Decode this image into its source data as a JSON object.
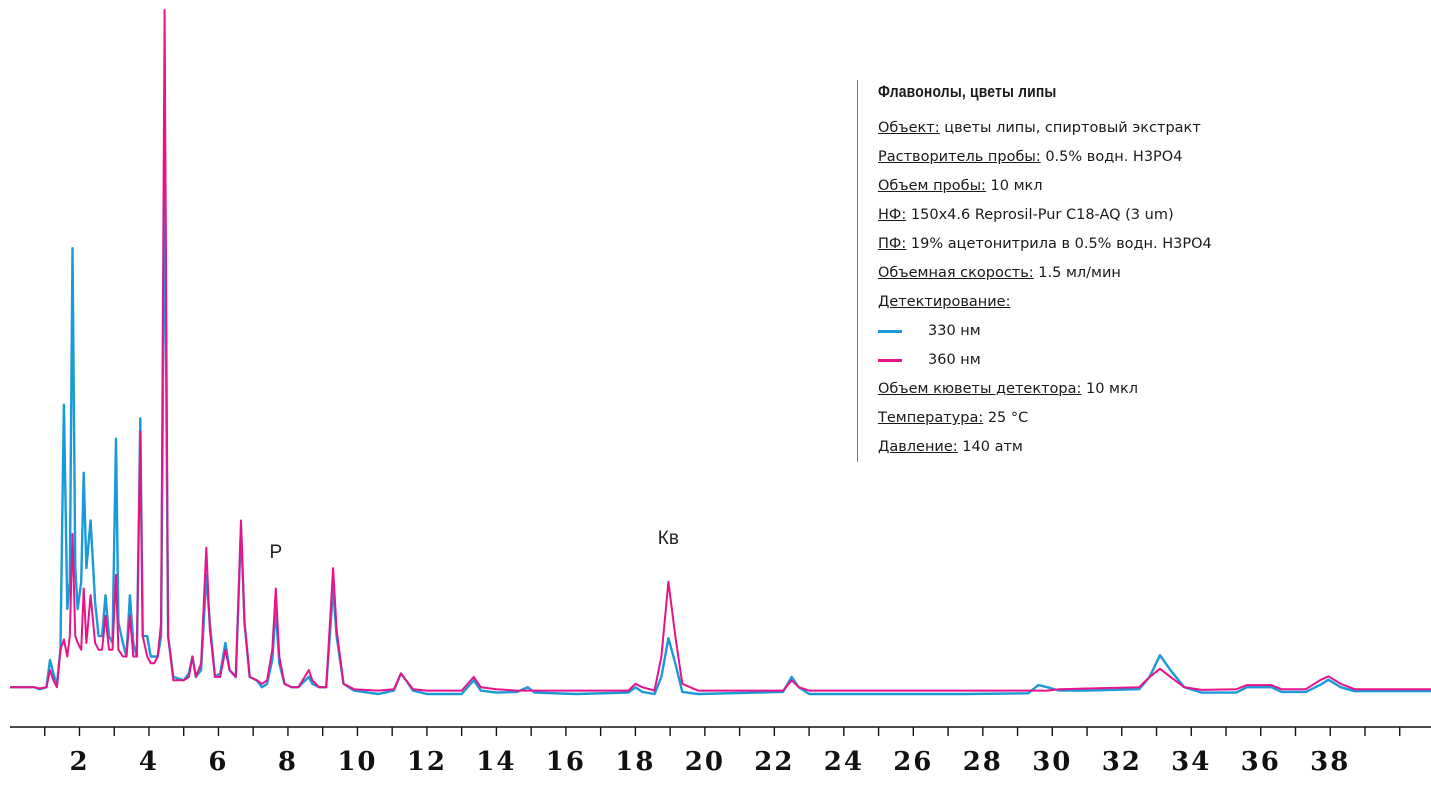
{
  "chart_data": {
    "type": "line",
    "title": "Флавонолы, цветы липы",
    "xlabel": "",
    "ylabel": "",
    "xlim": [
      0,
      40.9
    ],
    "ylim": [
      -0.8,
      100
    ],
    "x_ticks": [
      2,
      4,
      6,
      8,
      10,
      12,
      14,
      16,
      18,
      20,
      22,
      24,
      26,
      28,
      30,
      32,
      34,
      36,
      38
    ],
    "x_tick_labels": [
      "2",
      "4",
      "6",
      "8",
      "10",
      "12",
      "14",
      "16",
      "18",
      "20",
      "22",
      "24",
      "26",
      "28",
      "30",
      "32",
      "34",
      "36",
      "38"
    ],
    "minor_tick_step": 1,
    "grid": false,
    "annotations": [
      {
        "text": "Р",
        "x": 7.65,
        "y": 19.5
      },
      {
        "text": "Кв",
        "x": 18.95,
        "y": 21.5
      }
    ],
    "series": [
      {
        "name": "330 нм",
        "color": "#1a9ad6",
        "points": [
          [
            0,
            0.5
          ],
          [
            0.7,
            0.5
          ],
          [
            0.85,
            0.2
          ],
          [
            1.05,
            0.5
          ],
          [
            1.15,
            4.5
          ],
          [
            1.25,
            2.5
          ],
          [
            1.35,
            0.8
          ],
          [
            1.45,
            6
          ],
          [
            1.55,
            42
          ],
          [
            1.65,
            12
          ],
          [
            1.72,
            16
          ],
          [
            1.8,
            65
          ],
          [
            1.88,
            18
          ],
          [
            1.95,
            12
          ],
          [
            2.05,
            16
          ],
          [
            2.12,
            32
          ],
          [
            2.2,
            18
          ],
          [
            2.32,
            25
          ],
          [
            2.45,
            13
          ],
          [
            2.55,
            8
          ],
          [
            2.65,
            8
          ],
          [
            2.75,
            14
          ],
          [
            2.85,
            8
          ],
          [
            2.95,
            7
          ],
          [
            3.05,
            37
          ],
          [
            3.12,
            10
          ],
          [
            3.25,
            7
          ],
          [
            3.35,
            5
          ],
          [
            3.45,
            14
          ],
          [
            3.55,
            7
          ],
          [
            3.65,
            5
          ],
          [
            3.75,
            40
          ],
          [
            3.82,
            8
          ],
          [
            3.95,
            8
          ],
          [
            4.05,
            5
          ],
          [
            4.15,
            5
          ],
          [
            4.25,
            5
          ],
          [
            4.35,
            8
          ],
          [
            4.45,
            78
          ],
          [
            4.55,
            8
          ],
          [
            4.7,
            2
          ],
          [
            5.0,
            1.5
          ],
          [
            5.15,
            2.5
          ],
          [
            5.25,
            5
          ],
          [
            5.35,
            2
          ],
          [
            5.5,
            3
          ],
          [
            5.65,
            17
          ],
          [
            5.75,
            10
          ],
          [
            5.9,
            2
          ],
          [
            6.05,
            2.5
          ],
          [
            6.2,
            7
          ],
          [
            6.32,
            3
          ],
          [
            6.5,
            2
          ],
          [
            6.65,
            24
          ],
          [
            6.75,
            10
          ],
          [
            6.9,
            2
          ],
          [
            7.1,
            1.5
          ],
          [
            7.25,
            0.5
          ],
          [
            7.4,
            1
          ],
          [
            7.55,
            4.5
          ],
          [
            7.65,
            12
          ],
          [
            7.75,
            4
          ],
          [
            7.9,
            1
          ],
          [
            8.1,
            0.5
          ],
          [
            8.3,
            0.5
          ],
          [
            8.6,
            2
          ],
          [
            8.7,
            1
          ],
          [
            8.9,
            0.5
          ],
          [
            9.1,
            0.5
          ],
          [
            9.3,
            15
          ],
          [
            9.4,
            8
          ],
          [
            9.6,
            1
          ],
          [
            9.9,
            0
          ],
          [
            10.6,
            -0.5
          ],
          [
            11.05,
            0
          ],
          [
            11.25,
            2.5
          ],
          [
            11.4,
            1.5
          ],
          [
            11.6,
            0
          ],
          [
            12.0,
            -0.5
          ],
          [
            13.0,
            -0.5
          ],
          [
            13.35,
            1.5
          ],
          [
            13.55,
            0
          ],
          [
            14.0,
            -0.3
          ],
          [
            14.6,
            -0.2
          ],
          [
            14.9,
            0.5
          ],
          [
            15.1,
            -0.3
          ],
          [
            16.3,
            -0.5
          ],
          [
            17.8,
            -0.3
          ],
          [
            18.0,
            0.5
          ],
          [
            18.2,
            -0.2
          ],
          [
            18.55,
            -0.5
          ],
          [
            18.75,
            2
          ],
          [
            18.95,
            7.7
          ],
          [
            19.15,
            4
          ],
          [
            19.35,
            -0.2
          ],
          [
            19.8,
            -0.5
          ],
          [
            22.25,
            -0.2
          ],
          [
            22.5,
            2
          ],
          [
            22.7,
            0.5
          ],
          [
            23.0,
            -0.5
          ],
          [
            27.5,
            -0.5
          ],
          [
            29.3,
            -0.4
          ],
          [
            29.6,
            0.8
          ],
          [
            29.85,
            0.5
          ],
          [
            30.2,
            0
          ],
          [
            31.0,
            0
          ],
          [
            32.5,
            0.2
          ],
          [
            32.8,
            2
          ],
          [
            33.1,
            5.2
          ],
          [
            33.4,
            3
          ],
          [
            33.8,
            0.5
          ],
          [
            34.3,
            -0.3
          ],
          [
            35.3,
            -0.3
          ],
          [
            35.6,
            0.5
          ],
          [
            36.3,
            0.5
          ],
          [
            36.6,
            -0.2
          ],
          [
            37.3,
            -0.2
          ],
          [
            37.7,
            0.8
          ],
          [
            37.95,
            1.6
          ],
          [
            38.3,
            0.5
          ],
          [
            38.7,
            -0.1
          ],
          [
            40.9,
            -0.1
          ]
        ]
      },
      {
        "name": "360 нм",
        "color": "#e8138a",
        "points": [
          [
            0,
            0.5
          ],
          [
            0.7,
            0.5
          ],
          [
            0.85,
            0.3
          ],
          [
            1.05,
            0.5
          ],
          [
            1.15,
            3
          ],
          [
            1.25,
            1.5
          ],
          [
            1.35,
            0.5
          ],
          [
            1.45,
            6
          ],
          [
            1.55,
            7.5
          ],
          [
            1.65,
            5
          ],
          [
            1.72,
            8
          ],
          [
            1.8,
            23
          ],
          [
            1.88,
            8
          ],
          [
            1.95,
            7
          ],
          [
            2.05,
            6
          ],
          [
            2.12,
            15
          ],
          [
            2.2,
            7
          ],
          [
            2.32,
            14
          ],
          [
            2.45,
            7
          ],
          [
            2.55,
            6
          ],
          [
            2.65,
            6
          ],
          [
            2.75,
            11
          ],
          [
            2.85,
            6
          ],
          [
            2.95,
            6
          ],
          [
            3.05,
            17
          ],
          [
            3.12,
            6
          ],
          [
            3.25,
            5
          ],
          [
            3.35,
            5
          ],
          [
            3.45,
            11
          ],
          [
            3.55,
            5
          ],
          [
            3.65,
            5
          ],
          [
            3.75,
            38
          ],
          [
            3.82,
            8
          ],
          [
            3.95,
            5
          ],
          [
            4.05,
            4
          ],
          [
            4.15,
            4
          ],
          [
            4.25,
            5
          ],
          [
            4.35,
            10
          ],
          [
            4.45,
            100
          ],
          [
            4.55,
            8
          ],
          [
            4.7,
            1.5
          ],
          [
            5.0,
            1.5
          ],
          [
            5.15,
            2
          ],
          [
            5.25,
            5
          ],
          [
            5.35,
            2
          ],
          [
            5.5,
            4
          ],
          [
            5.65,
            21
          ],
          [
            5.75,
            9
          ],
          [
            5.9,
            2
          ],
          [
            6.05,
            2
          ],
          [
            6.2,
            6
          ],
          [
            6.32,
            3
          ],
          [
            6.5,
            2
          ],
          [
            6.65,
            25
          ],
          [
            6.75,
            10
          ],
          [
            6.9,
            2
          ],
          [
            7.1,
            1.5
          ],
          [
            7.25,
            1
          ],
          [
            7.4,
            1.5
          ],
          [
            7.55,
            6
          ],
          [
            7.65,
            15
          ],
          [
            7.75,
            5
          ],
          [
            7.9,
            1
          ],
          [
            8.1,
            0.5
          ],
          [
            8.3,
            0.5
          ],
          [
            8.6,
            3
          ],
          [
            8.7,
            1.5
          ],
          [
            8.9,
            0.5
          ],
          [
            9.1,
            0.5
          ],
          [
            9.3,
            18
          ],
          [
            9.4,
            9
          ],
          [
            9.6,
            1
          ],
          [
            9.9,
            0.2
          ],
          [
            10.6,
            0
          ],
          [
            11.05,
            0.2
          ],
          [
            11.25,
            2.5
          ],
          [
            11.4,
            1.5
          ],
          [
            11.6,
            0.2
          ],
          [
            12.0,
            0
          ],
          [
            13.0,
            0
          ],
          [
            13.35,
            2
          ],
          [
            13.55,
            0.5
          ],
          [
            14.0,
            0.2
          ],
          [
            14.6,
            0
          ],
          [
            14.9,
            0
          ],
          [
            15.1,
            0
          ],
          [
            16.3,
            0
          ],
          [
            17.8,
            0
          ],
          [
            18.0,
            1
          ],
          [
            18.2,
            0.5
          ],
          [
            18.55,
            0
          ],
          [
            18.75,
            5
          ],
          [
            18.95,
            16
          ],
          [
            19.15,
            8
          ],
          [
            19.35,
            1
          ],
          [
            19.8,
            0
          ],
          [
            22.25,
            0
          ],
          [
            22.5,
            1.5
          ],
          [
            22.7,
            0.5
          ],
          [
            23.0,
            0
          ],
          [
            27.5,
            0
          ],
          [
            29.3,
            0
          ],
          [
            29.6,
            0
          ],
          [
            29.85,
            0
          ],
          [
            30.2,
            0.2
          ],
          [
            31.0,
            0.3
          ],
          [
            32.5,
            0.5
          ],
          [
            32.8,
            2
          ],
          [
            33.1,
            3.2
          ],
          [
            33.4,
            2
          ],
          [
            33.8,
            0.5
          ],
          [
            34.3,
            0.1
          ],
          [
            35.3,
            0.2
          ],
          [
            35.6,
            0.8
          ],
          [
            36.3,
            0.8
          ],
          [
            36.6,
            0.2
          ],
          [
            37.3,
            0.2
          ],
          [
            37.7,
            1.5
          ],
          [
            37.95,
            2.1
          ],
          [
            38.3,
            1
          ],
          [
            38.7,
            0.2
          ],
          [
            40.9,
            0.2
          ]
        ]
      }
    ]
  },
  "legend": {
    "title": "Флавонолы, цветы липы",
    "rows": [
      {
        "label": "Объект:",
        "value": " цветы липы, спиртовый экстракт"
      },
      {
        "label": "Растворитель пробы:",
        "value": " 0.5% водн. H3PO4"
      },
      {
        "label": "Объем пробы:",
        "value": " 10 мкл"
      },
      {
        "label": "НФ:",
        "value": " 150x4.6 Reprosil-Pur C18-AQ (3 um)"
      },
      {
        "label": "ПФ:",
        "value": " 19% ацетонитрила в 0.5% водн. H3PO4"
      },
      {
        "label": "Объемная скорость:",
        "value": " 1.5 мл/мин"
      },
      {
        "label": "Детектирование:",
        "value": ""
      }
    ],
    "detectors": [
      {
        "label": "330 нм",
        "color": "#1a9ad6"
      },
      {
        "label": "360 нм",
        "color": "#e8138a"
      }
    ],
    "rows_after": [
      {
        "label": "Объем кюветы детектора:",
        "value": " 10 мкл"
      },
      {
        "label": "Температура:",
        "value": " 25 °C"
      },
      {
        "label": "Давление:",
        "value": " 140 атм"
      }
    ]
  }
}
